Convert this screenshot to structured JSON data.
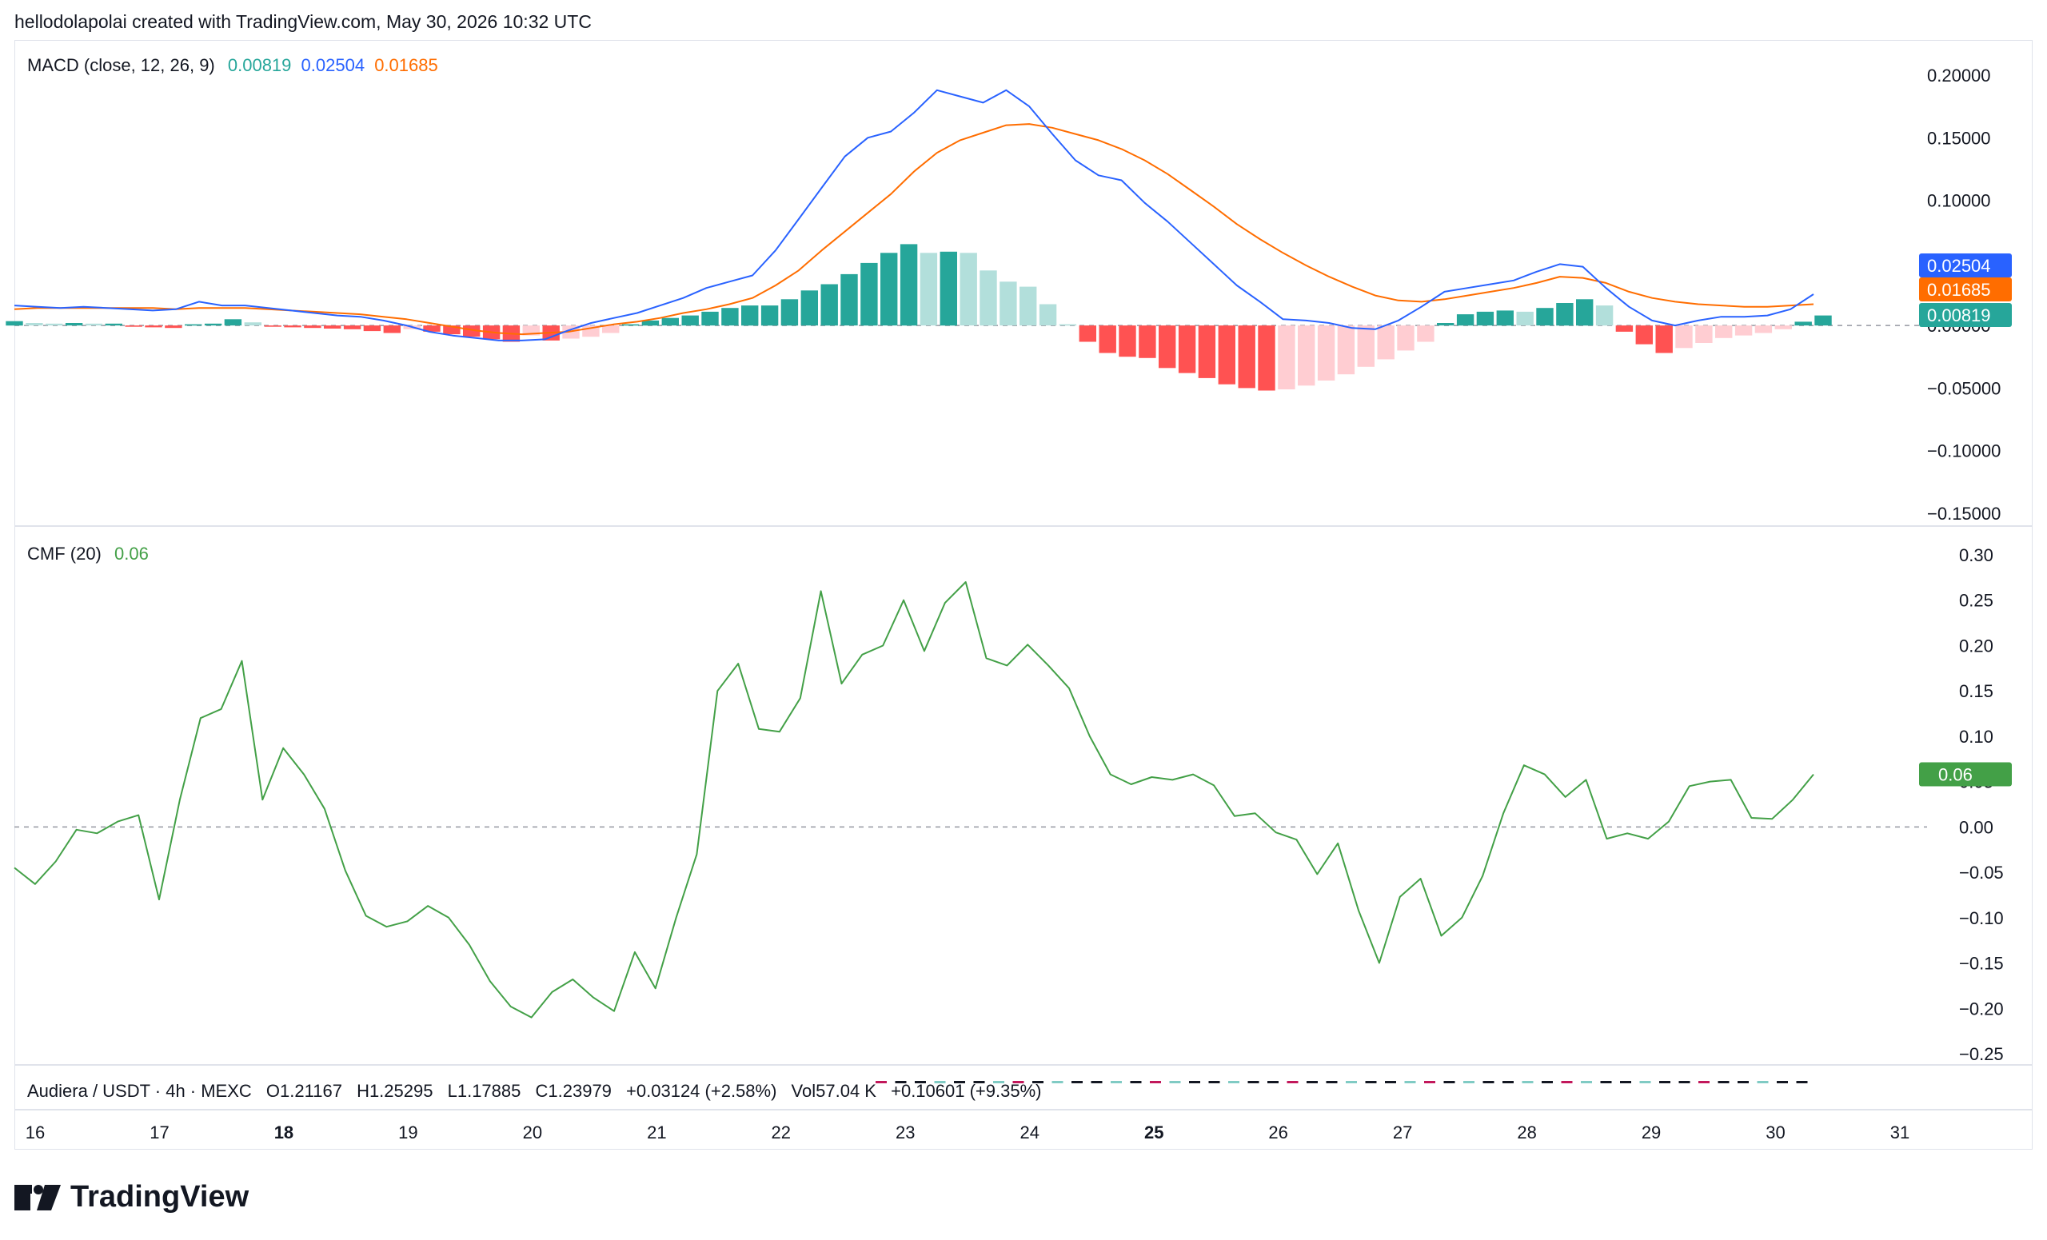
{
  "header": {
    "text": "hellodolapolai created with TradingView.com, May 30, 2026 10:32 UTC"
  },
  "brand": {
    "name": "TradingView"
  },
  "colors": {
    "macd": "#2962ff",
    "signal": "#ff6d00",
    "hist_up": "#26a69a",
    "hist_up_light": "#b2dfdb",
    "hist_down": "#ff5252",
    "hist_down_light": "#ffcdd2",
    "cmf": "#43a047",
    "zero": "#9598a1",
    "grid_border": "#e0e3eb"
  },
  "macd_legend": {
    "title": "MACD (close, 12, 26, 9)",
    "hist": "0.00819",
    "macd": "0.02504",
    "signal": "0.01685"
  },
  "cmf_legend": {
    "title": "CMF (20)",
    "value": "0.06"
  },
  "symbol_line": {
    "name": "Audiera / USDT · 4h · MEXC",
    "o": "O1.21167",
    "h": "H1.25295",
    "l": "L1.17885",
    "c": "C1.23979",
    "chg": "+0.03124 (+2.58%)",
    "vol": "Vol57.04 K",
    "vol_chg": "+0.10601 (+9.35%)"
  },
  "chart_data": [
    {
      "type": "line",
      "title": "MACD (close, 12, 26, 9)",
      "ylim": [
        -0.15,
        0.2
      ],
      "y_ticks": [
        "0.20000",
        "0.15000",
        "0.10000",
        "0.05000",
        "0.00000",
        "−0.05000",
        "−0.10000",
        "−0.15000"
      ],
      "y_tick_values": [
        0.2,
        0.15,
        0.1,
        0.05,
        0,
        -0.05,
        -0.1,
        -0.15
      ],
      "last_labels": [
        "0.02504",
        "0.01685",
        "0.00819"
      ],
      "series": [
        {
          "name": "MACD",
          "values": [
            0.016,
            0.015,
            0.014,
            0.015,
            0.014,
            0.013,
            0.012,
            0.013,
            0.019,
            0.016,
            0.016,
            0.014,
            0.012,
            0.01,
            0.008,
            0.007,
            0.004,
            0.0,
            -0.005,
            -0.008,
            -0.01,
            -0.012,
            -0.012,
            -0.011,
            -0.004,
            0.002,
            0.006,
            0.01,
            0.016,
            0.022,
            0.03,
            0.035,
            0.04,
            0.06,
            0.085,
            0.11,
            0.135,
            0.15,
            0.155,
            0.17,
            0.188,
            0.183,
            0.178,
            0.188,
            0.175,
            0.153,
            0.132,
            0.12,
            0.116,
            0.098,
            0.083,
            0.066,
            0.049,
            0.032,
            0.019,
            0.005,
            0.004,
            0.002,
            -0.002,
            -0.003,
            0.004,
            0.015,
            0.027,
            0.03,
            0.033,
            0.036,
            0.043,
            0.049,
            0.047,
            0.03,
            0.015,
            0.004,
            0.0,
            0.004,
            0.007,
            0.007,
            0.008,
            0.013,
            0.025
          ]
        },
        {
          "name": "Signal",
          "values": [
            0.013,
            0.014,
            0.014,
            0.014,
            0.014,
            0.014,
            0.014,
            0.013,
            0.014,
            0.014,
            0.014,
            0.013,
            0.012,
            0.011,
            0.01,
            0.009,
            0.007,
            0.005,
            0.002,
            -0.001,
            -0.004,
            -0.006,
            -0.007,
            -0.006,
            -0.005,
            -0.002,
            0.001,
            0.003,
            0.006,
            0.01,
            0.013,
            0.017,
            0.022,
            0.032,
            0.044,
            0.06,
            0.075,
            0.09,
            0.105,
            0.123,
            0.138,
            0.148,
            0.154,
            0.16,
            0.161,
            0.158,
            0.153,
            0.148,
            0.141,
            0.132,
            0.121,
            0.108,
            0.095,
            0.081,
            0.069,
            0.058,
            0.048,
            0.039,
            0.031,
            0.024,
            0.02,
            0.019,
            0.021,
            0.024,
            0.027,
            0.03,
            0.034,
            0.039,
            0.038,
            0.034,
            0.027,
            0.022,
            0.019,
            0.017,
            0.016,
            0.015,
            0.015,
            0.016,
            0.017
          ]
        }
      ],
      "histogram": [
        0.0035,
        0.002,
        0.0015,
        0.002,
        0.0015,
        0.0015,
        -0.001,
        -0.0015,
        -0.002,
        0.001,
        0.0015,
        0.005,
        0.0025,
        -0.001,
        -0.0015,
        -0.002,
        -0.0025,
        -0.003,
        -0.0045,
        -0.006,
        -0.003,
        -0.005,
        -0.007,
        -0.009,
        -0.011,
        -0.013,
        -0.008,
        -0.012,
        -0.0105,
        -0.009,
        -0.006,
        0.001,
        0.004,
        0.006,
        0.008,
        0.011,
        0.014,
        0.016,
        0.016,
        0.021,
        0.028,
        0.033,
        0.041,
        0.05,
        0.058,
        0.065,
        0.058,
        0.059,
        0.058,
        0.044,
        0.035,
        0.031,
        0.017,
        0.001,
        -0.013,
        -0.022,
        -0.025,
        -0.026,
        -0.034,
        -0.038,
        -0.042,
        -0.047,
        -0.05,
        -0.052,
        -0.051,
        -0.048,
        -0.044,
        -0.039,
        -0.033,
        -0.027,
        -0.02,
        -0.013,
        0.002,
        0.009,
        0.011,
        0.012,
        0.011,
        0.014,
        0.018,
        0.021,
        0.016,
        -0.005,
        -0.015,
        -0.022,
        -0.018,
        -0.014,
        -0.01,
        -0.008,
        -0.006,
        -0.003,
        0.003,
        0.008
      ]
    },
    {
      "type": "line",
      "title": "CMF (20)",
      "ylim": [
        -0.25,
        0.3
      ],
      "y_ticks": [
        "0.30",
        "0.25",
        "0.20",
        "0.15",
        "0.10",
        "0.05",
        "0.00",
        "−0.05",
        "−0.10",
        "−0.15",
        "−0.20",
        "−0.25"
      ],
      "y_tick_values": [
        0.3,
        0.25,
        0.2,
        0.15,
        0.1,
        0.05,
        0,
        -0.05,
        -0.1,
        -0.15,
        -0.2,
        -0.25
      ],
      "last_labels": [
        "0.06"
      ],
      "series": [
        {
          "name": "CMF",
          "values": [
            -0.045,
            -0.063,
            -0.038,
            -0.003,
            -0.007,
            0.006,
            0.013,
            -0.08,
            0.03,
            0.12,
            0.13,
            0.183,
            0.03,
            0.087,
            0.058,
            0.02,
            -0.048,
            -0.098,
            -0.11,
            -0.104,
            -0.087,
            -0.1,
            -0.13,
            -0.17,
            -0.198,
            -0.21,
            -0.182,
            -0.168,
            -0.188,
            -0.203,
            -0.138,
            -0.178,
            -0.1,
            -0.03,
            0.15,
            0.18,
            0.108,
            0.105,
            0.142,
            0.26,
            0.158,
            0.19,
            0.2,
            0.25,
            0.194,
            0.247,
            0.27,
            0.186,
            0.178,
            0.201,
            0.178,
            0.153,
            0.1,
            0.058,
            0.047,
            0.055,
            0.052,
            0.058,
            0.046,
            0.012,
            0.015,
            -0.006,
            -0.014,
            -0.052,
            -0.018,
            -0.092,
            -0.15,
            -0.077,
            -0.057,
            -0.12,
            -0.1,
            -0.054,
            0.015,
            0.068,
            0.058,
            0.033,
            0.052,
            -0.013,
            -0.007,
            -0.013,
            0.006,
            0.045,
            0.05,
            0.052,
            0.01,
            0.009,
            0.03,
            0.058
          ]
        }
      ]
    }
  ],
  "x_axis": {
    "labels": [
      "16",
      "17",
      "18",
      "19",
      "20",
      "21",
      "22",
      "23",
      "24",
      "25",
      "26",
      "27",
      "28",
      "29",
      "30",
      "31"
    ],
    "bold": [
      "18",
      "25"
    ]
  }
}
